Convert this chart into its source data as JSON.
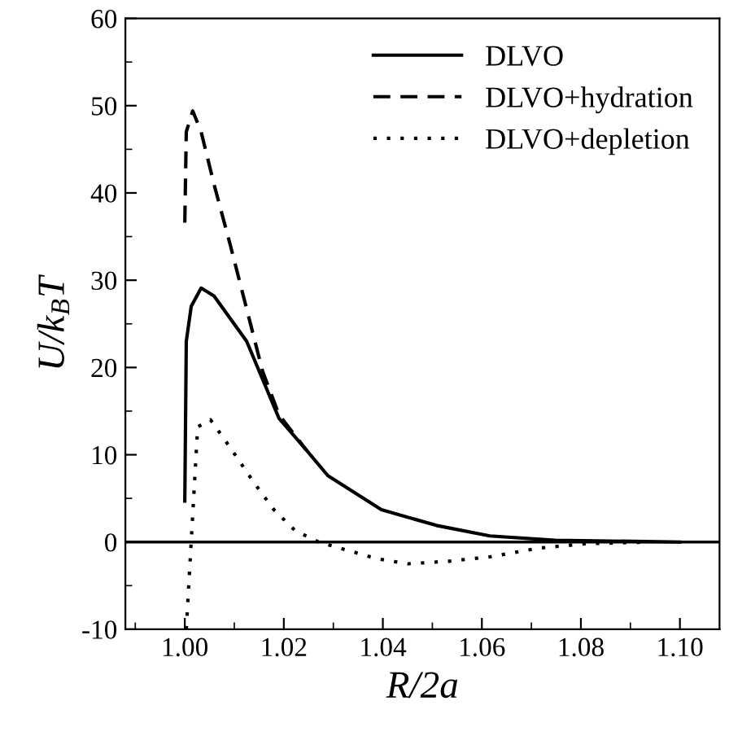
{
  "chart_data": {
    "type": "line",
    "xlabel": "R/2a",
    "ylabel": "U/k$_{B}$T",
    "xlim": [
      0.988,
      1.108
    ],
    "xticks": [
      {
        "value": 1.0,
        "label": "1.00"
      },
      {
        "value": 1.02,
        "label": "1.02"
      },
      {
        "value": 1.04,
        "label": "1.04"
      },
      {
        "value": 1.06,
        "label": "1.06"
      },
      {
        "value": 1.08,
        "label": "1.08"
      },
      {
        "value": 1.1,
        "label": "1.10"
      }
    ],
    "ylim": [
      -10,
      60
    ],
    "yticks": [
      -10,
      0,
      10,
      20,
      30,
      40,
      50,
      60
    ],
    "legend": "top right",
    "grid": false,
    "ref_lines": [
      {
        "axis": "y",
        "value": 0,
        "color": "#000000",
        "line_style": "solid"
      }
    ],
    "series": [
      {
        "name": "DLVO",
        "color": "#000000",
        "line_style": "solid",
        "x": [
          1.0,
          1.0003,
          1.0013,
          1.0033,
          1.0059,
          1.0125,
          1.019,
          1.0246,
          1.0289,
          1.0397,
          1.0508,
          1.0616,
          1.0748,
          1.1
        ],
        "values": [
          4.7,
          23,
          27,
          29.1,
          28.2,
          23,
          14.2,
          10.5,
          7.6,
          3.7,
          1.9,
          0.7,
          0.2,
          0
        ]
      },
      {
        "name": "DLVO+hydration",
        "color": "#000000",
        "line_style": "dashed",
        "x": [
          1.0,
          1.0003,
          1.0016,
          1.0033,
          1.0059,
          1.0092,
          1.0125,
          1.0157,
          1.019,
          1.0246
        ],
        "values": [
          36.6,
          47,
          49.4,
          47,
          41,
          34,
          26.7,
          19.6,
          14.6,
          10.5
        ]
      },
      {
        "name": "DLVO+depletion",
        "color": "#000000",
        "line_style": "dotted",
        "x": [
          1.0003,
          1.0026,
          1.0052,
          1.0092,
          1.0141,
          1.018,
          1.0223,
          1.027,
          1.0387,
          1.045,
          1.0534,
          1.0616,
          1.0715,
          1.081,
          1.094
        ],
        "values": [
          -10,
          13.2,
          14,
          10.8,
          6.7,
          3.7,
          1.3,
          0,
          -1.9,
          -2.5,
          -2.2,
          -1.7,
          -0.7,
          -0.2,
          0
        ]
      }
    ]
  }
}
